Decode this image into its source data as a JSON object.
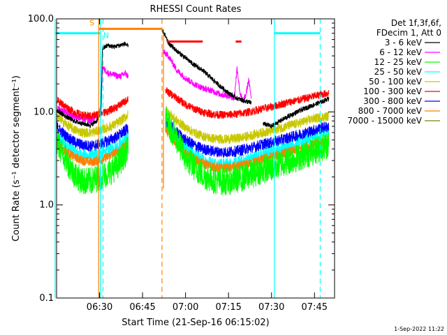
{
  "chart_data": {
    "type": "line",
    "title": "RHESSI Count Rates",
    "xlabel": "Start Time (21-Sep-16 06:15:02)",
    "ylabel": "Count Rate (s⁻¹ detector segment⁻¹)",
    "x_unit": "minutes after 06:15:02",
    "xlim": [
      0,
      97
    ],
    "ylim": [
      0.1,
      100
    ],
    "yscale": "log",
    "x_ticks": [
      {
        "label": "06:30",
        "value": 15
      },
      {
        "label": "06:45",
        "value": 30
      },
      {
        "label": "07:00",
        "value": 45
      },
      {
        "label": "07:15",
        "value": 60
      },
      {
        "label": "07:30",
        "value": 75
      },
      {
        "label": "07:45",
        "value": 90
      }
    ],
    "y_ticks": [
      {
        "label": "100.0",
        "value": 100
      },
      {
        "label": "10.0",
        "value": 10
      },
      {
        "label": "1.0",
        "value": 1
      },
      {
        "label": "0.1",
        "value": 0.1
      }
    ],
    "legend_header": [
      "Det 1f,3f,6f,",
      "FDecim 1, Att 0"
    ],
    "legend_position": "right",
    "series": [
      {
        "name": "3 - 6 keV",
        "color": "#000000",
        "x": [
          0,
          3,
          6,
          9,
          12,
          14,
          15.5,
          16,
          18,
          20,
          22,
          24,
          25,
          36,
          37,
          39,
          42,
          45,
          48,
          51,
          54,
          57,
          60,
          63,
          66,
          68,
          69,
          72,
          75,
          78,
          81,
          84,
          87,
          90,
          93,
          95
        ],
        "y": [
          10.5,
          9,
          8,
          7.5,
          7.2,
          8,
          10,
          48,
          52,
          50,
          52,
          54,
          50,
          null,
          75,
          55,
          45,
          38,
          32,
          28,
          23,
          19,
          16,
          14,
          13,
          12.5,
          null,
          7.5,
          7,
          8,
          9,
          10,
          11,
          12,
          13,
          14
        ]
      },
      {
        "name": "6 - 12 keV",
        "color": "#ff00ff",
        "x": [
          0,
          3,
          6,
          9,
          12,
          14,
          15.5,
          16,
          18,
          20,
          22,
          24,
          25,
          36,
          37,
          39,
          42,
          45,
          48,
          51,
          54,
          57,
          60,
          62,
          63,
          64,
          65,
          66,
          67,
          68
        ],
        "y": [
          11,
          10,
          9,
          8.5,
          8,
          9,
          11,
          30,
          26,
          25,
          24,
          26,
          24,
          null,
          45,
          40,
          28,
          23,
          20,
          18,
          17,
          15.5,
          15,
          14,
          30,
          16,
          13,
          15,
          22,
          14
        ]
      },
      {
        "name": "12 - 25 keV",
        "color": "#00ff00",
        "x": [
          0,
          3,
          6,
          9,
          12,
          15,
          18,
          21,
          24,
          25,
          36,
          38,
          42,
          45,
          48,
          51,
          54,
          57,
          60,
          63,
          66,
          69,
          72,
          75,
          78,
          81,
          84,
          87,
          90,
          93,
          95
        ],
        "y": [
          4.8,
          3.2,
          2.2,
          1.8,
          1.8,
          2.0,
          2.2,
          2.6,
          3.6,
          4.0,
          null,
          8.5,
          5.0,
          3.2,
          2.6,
          2.1,
          1.9,
          1.8,
          1.8,
          1.9,
          2.0,
          2.2,
          2.4,
          2.5,
          2.8,
          3.0,
          3.2,
          3.5,
          3.8,
          4.2,
          4.5
        ]
      },
      {
        "name": "25 - 50 keV",
        "color": "#00ffff",
        "x": [
          0,
          3,
          6,
          9,
          12,
          15,
          18,
          21,
          24,
          25,
          36,
          38,
          42,
          45,
          48,
          51,
          54,
          57,
          60,
          63,
          66,
          69,
          72,
          75,
          78,
          81,
          84,
          87,
          90,
          93,
          95
        ],
        "y": [
          5.5,
          4.5,
          3.8,
          3.4,
          3.3,
          3.5,
          3.8,
          4.2,
          5.0,
          5.5,
          null,
          8.0,
          5.5,
          4.2,
          3.5,
          3.0,
          2.8,
          2.7,
          2.7,
          2.8,
          3.0,
          3.2,
          3.5,
          3.7,
          4.0,
          4.3,
          4.6,
          5.0,
          5.4,
          5.8,
          6.0
        ]
      },
      {
        "name": "50 - 100 keV",
        "color": "#c8c800",
        "x": [
          0,
          3,
          6,
          9,
          12,
          15,
          18,
          21,
          24,
          25,
          36,
          38,
          42,
          45,
          48,
          51,
          54,
          57,
          60,
          63,
          66,
          69,
          72,
          75,
          78,
          81,
          84,
          87,
          90,
          93,
          95
        ],
        "y": [
          9.0,
          7.5,
          6.5,
          6.0,
          6.0,
          6.3,
          6.8,
          7.5,
          8.8,
          9.3,
          null,
          10.5,
          8.0,
          6.8,
          6.0,
          5.5,
          5.2,
          5.1,
          5.1,
          5.2,
          5.4,
          5.7,
          6.0,
          6.3,
          6.7,
          7.1,
          7.5,
          8.0,
          8.5,
          8.8,
          9.0
        ]
      },
      {
        "name": "100 - 300 keV",
        "color": "#ff0000",
        "x": [
          0,
          3,
          6,
          9,
          12,
          15,
          18,
          21,
          24,
          25,
          36,
          38,
          42,
          45,
          48,
          51,
          54,
          57,
          60,
          63,
          66,
          69,
          72,
          75,
          78,
          81,
          84,
          87,
          90,
          93,
          95
        ],
        "y": [
          13.5,
          11.5,
          10,
          9.2,
          9.0,
          9.5,
          10.2,
          11.3,
          13.0,
          14.0,
          null,
          17.0,
          14.0,
          12.0,
          10.8,
          10.0,
          9.5,
          9.3,
          9.3,
          9.5,
          9.8,
          10.3,
          10.8,
          11.3,
          12.0,
          12.7,
          13.3,
          14.0,
          14.8,
          15.5,
          16.0
        ]
      },
      {
        "name": "300 - 800 keV",
        "color": "#0000ff",
        "x": [
          0,
          3,
          6,
          9,
          12,
          15,
          18,
          21,
          24,
          25,
          36,
          38,
          42,
          45,
          48,
          51,
          54,
          57,
          60,
          63,
          66,
          69,
          72,
          75,
          78,
          81,
          84,
          87,
          90,
          93,
          95
        ],
        "y": [
          7.0,
          5.6,
          4.8,
          4.4,
          4.3,
          4.5,
          4.9,
          5.4,
          6.3,
          6.8,
          null,
          8.0,
          6.0,
          5.0,
          4.4,
          4.0,
          3.8,
          3.7,
          3.7,
          3.8,
          4.0,
          4.2,
          4.5,
          4.7,
          5.0,
          5.3,
          5.6,
          6.0,
          6.4,
          6.8,
          7.0
        ]
      },
      {
        "name": "800 - 7000 keV",
        "color": "#ff8000",
        "x": [
          0,
          3,
          6,
          9,
          12,
          15,
          18,
          21,
          24,
          25,
          36,
          38,
          42,
          45,
          48,
          51,
          54,
          57,
          60,
          63,
          66,
          69,
          72,
          75,
          78,
          81,
          84,
          87,
          90,
          93,
          95
        ],
        "y": [
          4.6,
          3.8,
          3.3,
          3.0,
          2.9,
          3.0,
          3.3,
          3.7,
          4.3,
          4.6,
          null,
          6.5,
          4.5,
          3.6,
          3.1,
          2.8,
          2.6,
          2.5,
          2.5,
          2.6,
          2.7,
          2.9,
          3.1,
          3.3,
          3.5,
          3.7,
          3.9,
          4.2,
          4.5,
          4.8,
          5.0
        ]
      },
      {
        "name": "7000 - 15000 keV",
        "color": "#808000",
        "x": [],
        "y": []
      }
    ],
    "annotations": [
      {
        "type": "vline",
        "x": -0.5,
        "color": "#00ffff",
        "style": "solid"
      },
      {
        "type": "hline",
        "x1": -0.5,
        "x2": 15.3,
        "y": 70,
        "color": "#00ffff"
      },
      {
        "type": "vline",
        "x": 14.7,
        "color": "#ff8000",
        "style": "solid"
      },
      {
        "type": "vline",
        "x": 15.3,
        "color": "#00ffff",
        "style": "solid"
      },
      {
        "type": "vline",
        "x": 16.2,
        "color": "#00ffff",
        "style": "dash"
      },
      {
        "type": "hline",
        "x1": 14.7,
        "x2": 36.8,
        "y": 78,
        "color": "#ff8000"
      },
      {
        "type": "vline",
        "x": 36.8,
        "color": "#ff8000",
        "style": "dash"
      },
      {
        "type": "vline",
        "x": 37.3,
        "color": "#ff8000",
        "style": "solid"
      },
      {
        "type": "hline",
        "x1": 38.5,
        "x2": 51,
        "y": 57,
        "color": "#ff0000"
      },
      {
        "type": "hline",
        "x1": 62.5,
        "x2": 64.5,
        "y": 57,
        "color": "#ff0000"
      },
      {
        "type": "vline",
        "x": 76,
        "color": "#00ffff",
        "style": "solid"
      },
      {
        "type": "hline",
        "x1": 76,
        "x2": 92,
        "y": 70,
        "color": "#00ffff"
      },
      {
        "type": "vline",
        "x": 92,
        "color": "#00ffff",
        "style": "dash"
      }
    ],
    "flag_labels": [
      {
        "text": "S",
        "x": 12.3,
        "y": 85,
        "color": "#ff8000"
      },
      {
        "text": "N",
        "x": 17.3,
        "y": 62,
        "color": "#00ffff"
      }
    ]
  },
  "footer_date": "1-Sep-2022 11:22"
}
